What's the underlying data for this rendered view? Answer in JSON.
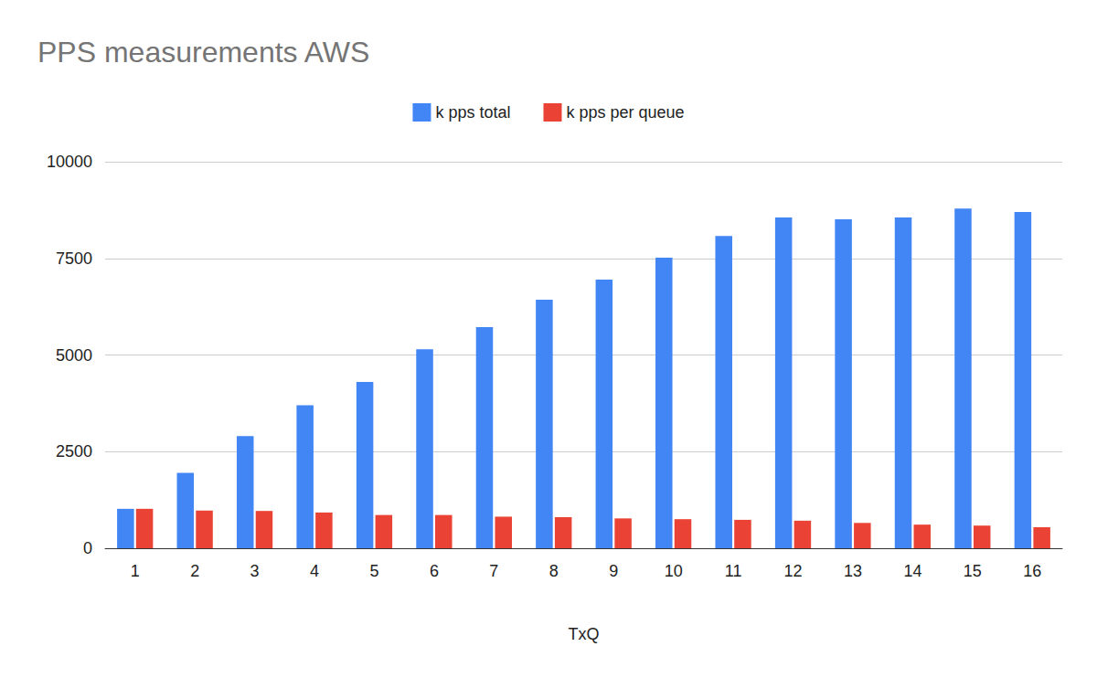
{
  "chart_data": {
    "type": "bar",
    "title": "PPS measurements AWS",
    "x_label": "TxQ",
    "categories": [
      "1",
      "2",
      "3",
      "4",
      "5",
      "6",
      "7",
      "8",
      "9",
      "10",
      "11",
      "12",
      "13",
      "14",
      "15",
      "16"
    ],
    "series": [
      {
        "name": "k pps total",
        "color": "#4285f4",
        "values": [
          1020,
          1950,
          2900,
          3700,
          4300,
          5150,
          5720,
          6430,
          6950,
          7520,
          8080,
          8560,
          8510,
          8560,
          8790,
          8700
        ]
      },
      {
        "name": "k pps per queue",
        "color": "#ea4335",
        "values": [
          1020,
          975,
          965,
          925,
          860,
          860,
          817,
          804,
          772,
          752,
          735,
          713,
          655,
          611,
          586,
          544
        ]
      }
    ],
    "ylim": [
      0,
      10000
    ],
    "yticks": [
      0,
      2500,
      5000,
      7500,
      10000
    ],
    "grid": true,
    "legend": "top"
  }
}
